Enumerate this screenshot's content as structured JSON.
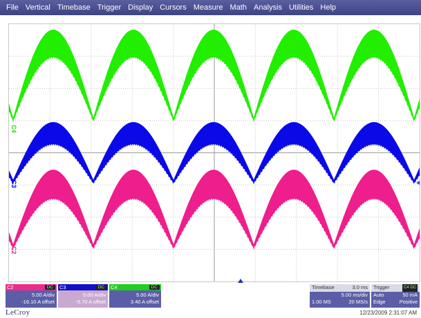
{
  "menu": [
    "File",
    "Vertical",
    "Timebase",
    "Trigger",
    "Display",
    "Cursors",
    "Measure",
    "Math",
    "Analysis",
    "Utilities",
    "Help"
  ],
  "colors": {
    "c4": "#22ee00",
    "c3": "#0a0ae8",
    "c2": "#ee1e8c",
    "menu_bg": "#3f4384",
    "panel_bg": "#5b5ea6"
  },
  "markers": {
    "c4": "C4",
    "c3": "C3",
    "c2": "C2"
  },
  "channels": [
    {
      "id": "c2",
      "label": "C2",
      "tag": "DC",
      "scale": "5.00 A/div",
      "offset": "-16.10 A offset",
      "color": "#ee2a8c"
    },
    {
      "id": "c3",
      "label": "C3",
      "tag": "DC",
      "scale": "5.00 A/div",
      "offset": "-5.70 A offset",
      "color": "#1010c8"
    },
    {
      "id": "c4",
      "label": "C4",
      "tag": "DC",
      "scale": "5.00 A/div",
      "offset": "3.40 A offset",
      "color": "#1ecf1e"
    }
  ],
  "timebase": {
    "title": "Timebase",
    "delay": "3.0 ms",
    "per_div": "5.00 ms/div",
    "samples": "1.00 MS",
    "rate": "20 MS/s"
  },
  "trigger": {
    "title": "Trigger",
    "tag": "C4 DC",
    "mode": "Auto",
    "level": "50 mA",
    "type": "Edge",
    "slope": "Positive"
  },
  "logo": "LeCroy",
  "datetime": "12/23/2009 2:31:07 AM"
}
